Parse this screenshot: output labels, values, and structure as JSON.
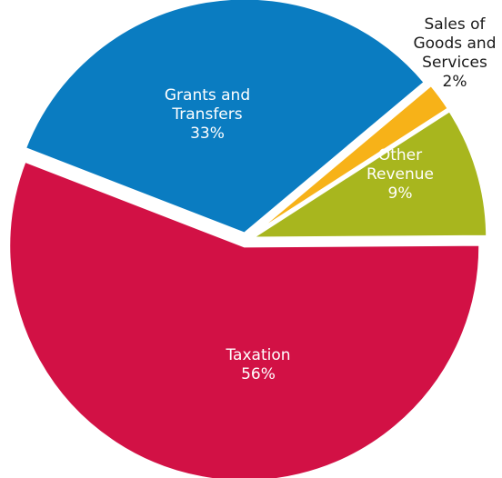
{
  "chart_data": {
    "type": "pie",
    "slices": [
      {
        "label": [
          "Sales of",
          "Goods and",
          "Services",
          "2%"
        ],
        "value": 2,
        "color": "#f7b218",
        "label_color": "#1a1a1a",
        "label_position": "outside-top-right"
      },
      {
        "label": [
          "Other",
          "Revenue",
          "9%"
        ],
        "value": 9,
        "color": "#a8b61e",
        "label_color": "#ffffff",
        "label_position": "inside"
      },
      {
        "label": [
          "Taxation",
          "56%"
        ],
        "value": 56,
        "color": "#d21145",
        "label_color": "#ffffff",
        "label_position": "inside"
      },
      {
        "label": [
          "Grants and",
          "Transfers",
          "33%"
        ],
        "value": 33,
        "color": "#0a7cc1",
        "label_color": "#ffffff",
        "label_position": "inside"
      }
    ],
    "slice_order": "clockwise from upper right"
  }
}
